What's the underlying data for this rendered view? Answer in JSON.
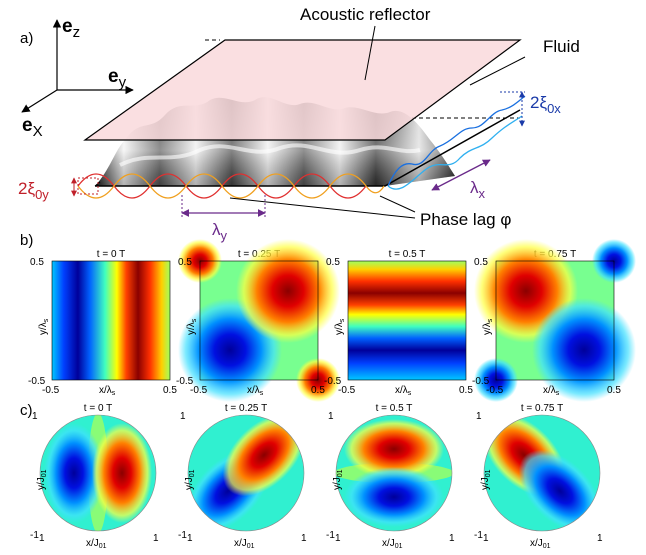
{
  "panel_a": {
    "label": "a)",
    "axes": {
      "ez": "e",
      "ez_sub": "z",
      "ey": "e",
      "ey_sub": "y",
      "ex": "e",
      "ex_sub": "X"
    },
    "reflector_label": "Acoustic reflector",
    "fluid_label": "Fluid",
    "xi_0x": "2ξ",
    "xi_0x_sub": "0x",
    "xi_0y": "2ξ",
    "xi_0y_sub": "0y",
    "lambda_x": "λ",
    "lambda_x_sub": "x",
    "lambda_y": "λ",
    "lambda_y_sub": "y",
    "phase_lag": "Phase lag φ",
    "colors": {
      "reflector_fill": "#f9d9dc",
      "xi0y": "#c0202a",
      "xi0x": "#1a3aa8",
      "lambda": "#6a2a8a"
    }
  },
  "panel_b": {
    "label": "b)",
    "plots": [
      {
        "title": "t = 0 T"
      },
      {
        "title": "t = 0.25 T"
      },
      {
        "title": "t = 0.5 T"
      },
      {
        "title": "t = 0.75 T"
      }
    ],
    "xlabel": "x/λ",
    "xlabel_sub": "s",
    "ylabel": "y/λ",
    "ylabel_sub": "s",
    "ytick_top": "0.5",
    "ytick_bottom": "-0.5",
    "xtick_left": "-0.5",
    "xtick_right": "0.5"
  },
  "panel_c": {
    "label": "c)",
    "plots": [
      {
        "title": "t = 0 T"
      },
      {
        "title": "t = 0.25 T"
      },
      {
        "title": "t = 0.5 T"
      },
      {
        "title": "t = 0.75 T"
      }
    ],
    "xlabel": "x/J",
    "xlabel_sub": "01",
    "ylabel": "y/J",
    "ylabel_sub": "01",
    "ytick_top": "1",
    "ytick_bottom": "-1",
    "xtick_left": "1",
    "xtick_right": "1"
  }
}
